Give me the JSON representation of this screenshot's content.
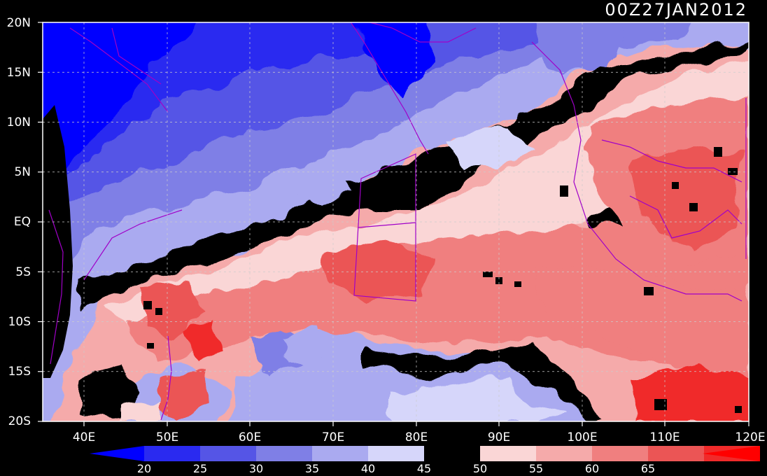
{
  "title": "00Z27JAN2012",
  "axes": {
    "y_ticks": [
      "20N",
      "15N",
      "10N",
      "5N",
      "EQ",
      "5S",
      "10S",
      "15S",
      "20S"
    ],
    "x_ticks": [
      "40E",
      "50E",
      "60E",
      "70E",
      "80E",
      "90E",
      "100E",
      "110E",
      "120E"
    ]
  },
  "colorbar": {
    "labels": [
      "20",
      "25",
      "30",
      "35",
      "40",
      "45",
      "50",
      "55",
      "60",
      "65"
    ],
    "colors": [
      "#0000ff",
      "#2a2af0",
      "#5555e6",
      "#7f7fe6",
      "#aaaaf0",
      "#d6d6fa",
      "#000000",
      "#fad6d6",
      "#f5aaaa",
      "#f07f7f",
      "#eb5555",
      "#f02a2a",
      "#ff0000"
    ]
  }
}
